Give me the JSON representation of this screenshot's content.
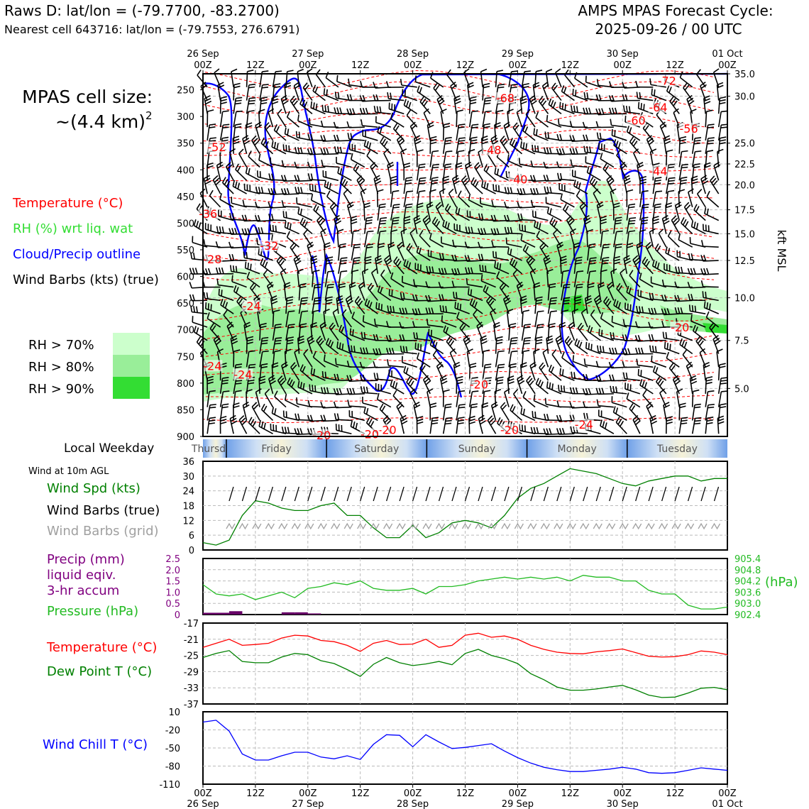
{
  "header": {
    "raws_line": "Raws D: lat/lon = (-79.7700, -83.2700)",
    "nearest_line": "Nearest cell 643716: lat/lon = (-79.7553, 276.6791)",
    "cycle_line1": "AMPS MPAS Forecast Cycle:",
    "cycle_line2": "2025-09-26 / 00 UTC"
  },
  "left_legend": {
    "cell_size_line1": "MPAS cell size:",
    "cell_size_line2": "~(4.4 km)",
    "cell_size_sup": "2",
    "temperature": "Temperature (°C)",
    "rh": "RH (%) wrt liq. wat",
    "cloud": "Cloud/Precip outline",
    "wind": "Wind Barbs (kts) (true)",
    "rh70": "RH > 70%",
    "rh80": "RH > 80%",
    "rh90": "RH > 90%",
    "colors": {
      "temperature": "#ff0000",
      "rh": "#33cc33",
      "cloud": "#0000ff",
      "rh70": "#ccffcc",
      "rh80": "#99ee99",
      "rh90": "#33dd33"
    }
  },
  "time_axis": {
    "top_ticks": [
      {
        "hour": 0,
        "l1": "26 Sep",
        "l2": "00Z"
      },
      {
        "hour": 12,
        "l1": "",
        "l2": "12Z"
      },
      {
        "hour": 24,
        "l1": "27 Sep",
        "l2": "00Z"
      },
      {
        "hour": 36,
        "l1": "",
        "l2": "12Z"
      },
      {
        "hour": 48,
        "l1": "28 Sep",
        "l2": "00Z"
      },
      {
        "hour": 60,
        "l1": "",
        "l2": "12Z"
      },
      {
        "hour": 72,
        "l1": "29 Sep",
        "l2": "00Z"
      },
      {
        "hour": 84,
        "l1": "",
        "l2": "12Z"
      },
      {
        "hour": 96,
        "l1": "30 Sep",
        "l2": "00Z"
      },
      {
        "hour": 108,
        "l1": "",
        "l2": "12Z"
      },
      {
        "hour": 120,
        "l1": "01 Oct",
        "l2": "00Z"
      }
    ],
    "bottom_ticks": [
      {
        "hour": 0,
        "l1": "00Z",
        "l2": "26 Sep"
      },
      {
        "hour": 12,
        "l1": "12Z",
        "l2": ""
      },
      {
        "hour": 24,
        "l1": "00Z",
        "l2": "27 Sep"
      },
      {
        "hour": 36,
        "l1": "12Z",
        "l2": ""
      },
      {
        "hour": 48,
        "l1": "00Z",
        "l2": "28 Sep"
      },
      {
        "hour": 60,
        "l1": "12Z",
        "l2": ""
      },
      {
        "hour": 72,
        "l1": "00Z",
        "l2": "29 Sep"
      },
      {
        "hour": 84,
        "l1": "12Z",
        "l2": ""
      },
      {
        "hour": 96,
        "l1": "00Z",
        "l2": "30 Sep"
      },
      {
        "hour": 108,
        "l1": "12Z",
        "l2": ""
      },
      {
        "hour": 120,
        "l1": "00Z",
        "l2": "01 Oct"
      }
    ]
  },
  "weekday_bar": {
    "label": "Local Weekday",
    "days": [
      {
        "name": "Thursday",
        "start": 0,
        "end": 2.8
      },
      {
        "name": "Friday",
        "start": 2.8,
        "end": 14.8
      },
      {
        "name": "Saturday",
        "start": 14.8,
        "end": 26.8
      },
      {
        "name": "Sunday",
        "start": 26.8,
        "end": 38.8
      },
      {
        "name": "Monday",
        "start": 38.8,
        "end": 50.8
      },
      {
        "name": "Tuesday",
        "start": 50.8,
        "end": 62.8
      }
    ]
  },
  "chart_data": [
    {
      "type": "heatmap",
      "name": "vertical-profile",
      "x_unit": "forecast hours from 2025-09-26 00Z",
      "xlim": [
        0,
        120
      ],
      "y_left_label": "",
      "y_left_ticks": [
        250,
        300,
        350,
        400,
        450,
        500,
        550,
        600,
        650,
        700,
        750,
        800,
        850,
        900
      ],
      "ylim_hpa": [
        900,
        220
      ],
      "y_right_label": "kft MSL",
      "y_right_ticks": [
        {
          "label": "35.0",
          "hpa": 220
        },
        {
          "label": "30.0",
          "hpa": 262
        },
        {
          "label": "25.0",
          "hpa": 350
        },
        {
          "label": "22.5",
          "hpa": 389
        },
        {
          "label": "20.0",
          "hpa": 428
        },
        {
          "label": "17.5",
          "hpa": 475
        },
        {
          "label": "15.0",
          "hpa": 520
        },
        {
          "label": "12.5",
          "hpa": 570
        },
        {
          "label": "10.0",
          "hpa": 640
        },
        {
          "label": "7.5",
          "hpa": 720
        },
        {
          "label": "5.0",
          "hpa": 810
        }
      ],
      "temperature_labels": [
        {
          "text": "-72",
          "t": 106,
          "p": 235
        },
        {
          "text": "-68",
          "t": 69,
          "p": 268
        },
        {
          "text": "-64",
          "t": 104,
          "p": 285
        },
        {
          "text": "-60",
          "t": 99,
          "p": 310
        },
        {
          "text": "-56",
          "t": 111,
          "p": 325
        },
        {
          "text": "-52",
          "t": 3,
          "p": 360
        },
        {
          "text": "-48",
          "t": 66,
          "p": 365
        },
        {
          "text": "-44",
          "t": 104,
          "p": 405
        },
        {
          "text": "-40",
          "t": 72,
          "p": 420
        },
        {
          "text": "-36",
          "t": 1,
          "p": 485
        },
        {
          "text": "-32",
          "t": 15,
          "p": 545
        },
        {
          "text": "-28",
          "t": 2,
          "p": 570
        },
        {
          "text": "-24",
          "t": 11,
          "p": 658
        },
        {
          "text": "-24",
          "t": 2,
          "p": 770
        },
        {
          "text": "-24",
          "t": 9,
          "p": 786
        },
        {
          "text": "-20",
          "t": 109,
          "p": 698
        },
        {
          "text": "-20",
          "t": 63,
          "p": 805
        },
        {
          "text": "-20",
          "t": 70,
          "p": 890
        },
        {
          "text": "-24",
          "t": 87,
          "p": 880
        },
        {
          "text": "-20",
          "t": 42,
          "p": 890
        },
        {
          "text": "-20",
          "t": 27,
          "p": 900
        },
        {
          "text": "-20",
          "t": 38,
          "p": 898
        }
      ]
    },
    {
      "type": "line",
      "name": "wind-speed",
      "ylim": [
        0,
        36
      ],
      "yticks": [
        0,
        6,
        12,
        18,
        24,
        30,
        36
      ],
      "series": [
        {
          "name": "Wind Spd (kts)",
          "color": "#008000",
          "x": [
            0,
            3,
            6,
            9,
            12,
            15,
            18,
            21,
            24,
            27,
            30,
            33,
            36,
            39,
            42,
            45,
            48,
            51,
            54,
            57,
            60,
            63,
            66,
            69,
            72,
            75,
            78,
            81,
            84,
            87,
            90,
            93,
            96,
            99,
            102,
            105,
            108,
            111,
            114,
            117,
            120
          ],
          "y": [
            3,
            2,
            4,
            14,
            20,
            19,
            17,
            16,
            16,
            18,
            19,
            14,
            14,
            9,
            5,
            5,
            10,
            5,
            7,
            11,
            12,
            11,
            9,
            14,
            21,
            25,
            27,
            30,
            33,
            32,
            31,
            29,
            27,
            26,
            28,
            29,
            30,
            30,
            28,
            29,
            29
          ]
        }
      ],
      "wind_10m_label": "Wind at 10m AGL",
      "labels": {
        "speed": "Wind Spd (kts)",
        "barbs": "Wind Barbs (true)",
        "grid": "Wind Barbs (grid)"
      }
    },
    {
      "type": "line",
      "name": "precip-pressure",
      "ylim": [
        0,
        2.5
      ],
      "yticks": [
        "0",
        "0.5",
        "1.0",
        "1.5",
        "2.0",
        "2.5"
      ],
      "y2lim": [
        902.4,
        905.4
      ],
      "y2ticks": [
        "902.4",
        "903.0",
        "903.6",
        "904.2",
        "904.8",
        "905.4"
      ],
      "y2label": "(hPa)",
      "labels": {
        "precip_l1": "Precip (mm)",
        "precip_l2": "liquid eqiv.",
        "precip_l3": "3-hr accum",
        "pressure": "Pressure (hPa)"
      },
      "series": [
        {
          "name": "Pressure (hPa)",
          "color": "#22bb22",
          "x": [
            0,
            3,
            6,
            9,
            12,
            15,
            18,
            21,
            24,
            27,
            30,
            33,
            36,
            39,
            42,
            45,
            48,
            51,
            54,
            57,
            60,
            63,
            66,
            69,
            72,
            75,
            78,
            81,
            84,
            87,
            90,
            93,
            96,
            99,
            102,
            105,
            108,
            111,
            114,
            117,
            120
          ],
          "y": [
            904.0,
            903.5,
            903.4,
            903.5,
            903.2,
            903.4,
            903.6,
            903.3,
            903.8,
            903.9,
            904.1,
            904.0,
            904.2,
            903.8,
            903.7,
            903.7,
            903.8,
            903.5,
            903.9,
            903.9,
            904.0,
            904.2,
            904.3,
            904.4,
            904.3,
            904.4,
            904.3,
            904.4,
            904.2,
            904.5,
            904.4,
            904.4,
            904.2,
            904.2,
            903.7,
            903.5,
            903.5,
            902.9,
            902.7,
            902.7,
            902.8
          ]
        },
        {
          "name": "Precip (mm)",
          "color": "#660066",
          "bars": [
            {
              "t0": 0,
              "t1": 3,
              "v": 0.08
            },
            {
              "t0": 3,
              "t1": 6,
              "v": 0.08
            },
            {
              "t0": 6,
              "t1": 9,
              "v": 0.15
            },
            {
              "t0": 18,
              "t1": 21,
              "v": 0.1
            },
            {
              "t0": 21,
              "t1": 24,
              "v": 0.1
            },
            {
              "t0": 24,
              "t1": 27,
              "v": 0.05
            }
          ]
        }
      ]
    },
    {
      "type": "line",
      "name": "temperature-dewpoint",
      "ylim": [
        -37,
        -17
      ],
      "yticks": [
        "-37",
        "-33",
        "-29",
        "-25",
        "-21",
        "-17"
      ],
      "labels": {
        "temp": "Temperature (°C)",
        "dew": "Dew Point T (°C)"
      },
      "series": [
        {
          "name": "Temperature (°C)",
          "color": "#ff0000",
          "x": [
            0,
            3,
            6,
            9,
            12,
            15,
            18,
            21,
            24,
            27,
            30,
            33,
            36,
            39,
            42,
            45,
            48,
            51,
            54,
            57,
            60,
            63,
            66,
            69,
            72,
            75,
            78,
            81,
            84,
            87,
            90,
            93,
            96,
            99,
            102,
            105,
            108,
            111,
            114,
            117,
            120
          ],
          "y": [
            -23,
            -22,
            -21,
            -22.5,
            -22.3,
            -22,
            -20.7,
            -20,
            -20.2,
            -21.3,
            -21.6,
            -22.5,
            -24,
            -22,
            -21.3,
            -22.3,
            -22.2,
            -21,
            -23,
            -22.5,
            -20,
            -19.5,
            -20.5,
            -20.2,
            -21,
            -22.5,
            -23.5,
            -24.2,
            -24.5,
            -24.6,
            -24.1,
            -23.8,
            -23.4,
            -24.3,
            -25.2,
            -25.4,
            -25.3,
            -24.8,
            -23.9,
            -24.2,
            -24.8
          ]
        },
        {
          "name": "Dew Point T (°C)",
          "color": "#008000",
          "x": [
            0,
            3,
            6,
            9,
            12,
            15,
            18,
            21,
            24,
            27,
            30,
            33,
            36,
            39,
            42,
            45,
            48,
            51,
            54,
            57,
            60,
            63,
            66,
            69,
            72,
            75,
            78,
            81,
            84,
            87,
            90,
            93,
            96,
            99,
            102,
            105,
            108,
            111,
            114,
            117,
            120
          ],
          "y": [
            -25.5,
            -24.5,
            -23.8,
            -26.5,
            -26.8,
            -26.8,
            -25.4,
            -24.5,
            -24.8,
            -26.3,
            -27,
            -28.5,
            -30.2,
            -27.2,
            -25.5,
            -26.8,
            -27.5,
            -27.1,
            -26.5,
            -27.3,
            -24.5,
            -23.5,
            -25,
            -25.8,
            -27,
            -29.5,
            -31,
            -32.8,
            -33.6,
            -33.6,
            -33.3,
            -32.8,
            -32.4,
            -33.5,
            -34.8,
            -35.4,
            -35.3,
            -34.3,
            -33.1,
            -32.9,
            -33.5
          ]
        }
      ]
    },
    {
      "type": "line",
      "name": "wind-chill",
      "ylim": [
        -110,
        10
      ],
      "yticks": [
        "-110",
        "-80",
        "-50",
        "-20",
        "10"
      ],
      "labels": {
        "chill": "Wind Chill T (°C)"
      },
      "series": [
        {
          "name": "Wind Chill T (°C)",
          "color": "#0000ff",
          "x": [
            0,
            3,
            6,
            9,
            12,
            15,
            18,
            21,
            24,
            27,
            30,
            33,
            36,
            39,
            42,
            45,
            48,
            51,
            54,
            57,
            60,
            63,
            66,
            69,
            72,
            75,
            78,
            81,
            84,
            87,
            90,
            93,
            96,
            99,
            102,
            105,
            108,
            111,
            114,
            117,
            120
          ],
          "y": [
            -7,
            -4,
            -22,
            -60,
            -70,
            -70,
            -63,
            -57,
            -57,
            -65,
            -68,
            -63,
            -69,
            -44,
            -28,
            -29,
            -48,
            -28,
            -40,
            -51,
            -49,
            -46,
            -43,
            -55,
            -66,
            -75,
            -82,
            -86,
            -89,
            -89,
            -87,
            -85,
            -82,
            -85,
            -91,
            -92,
            -91,
            -87,
            -83,
            -85,
            -87
          ]
        }
      ]
    }
  ]
}
